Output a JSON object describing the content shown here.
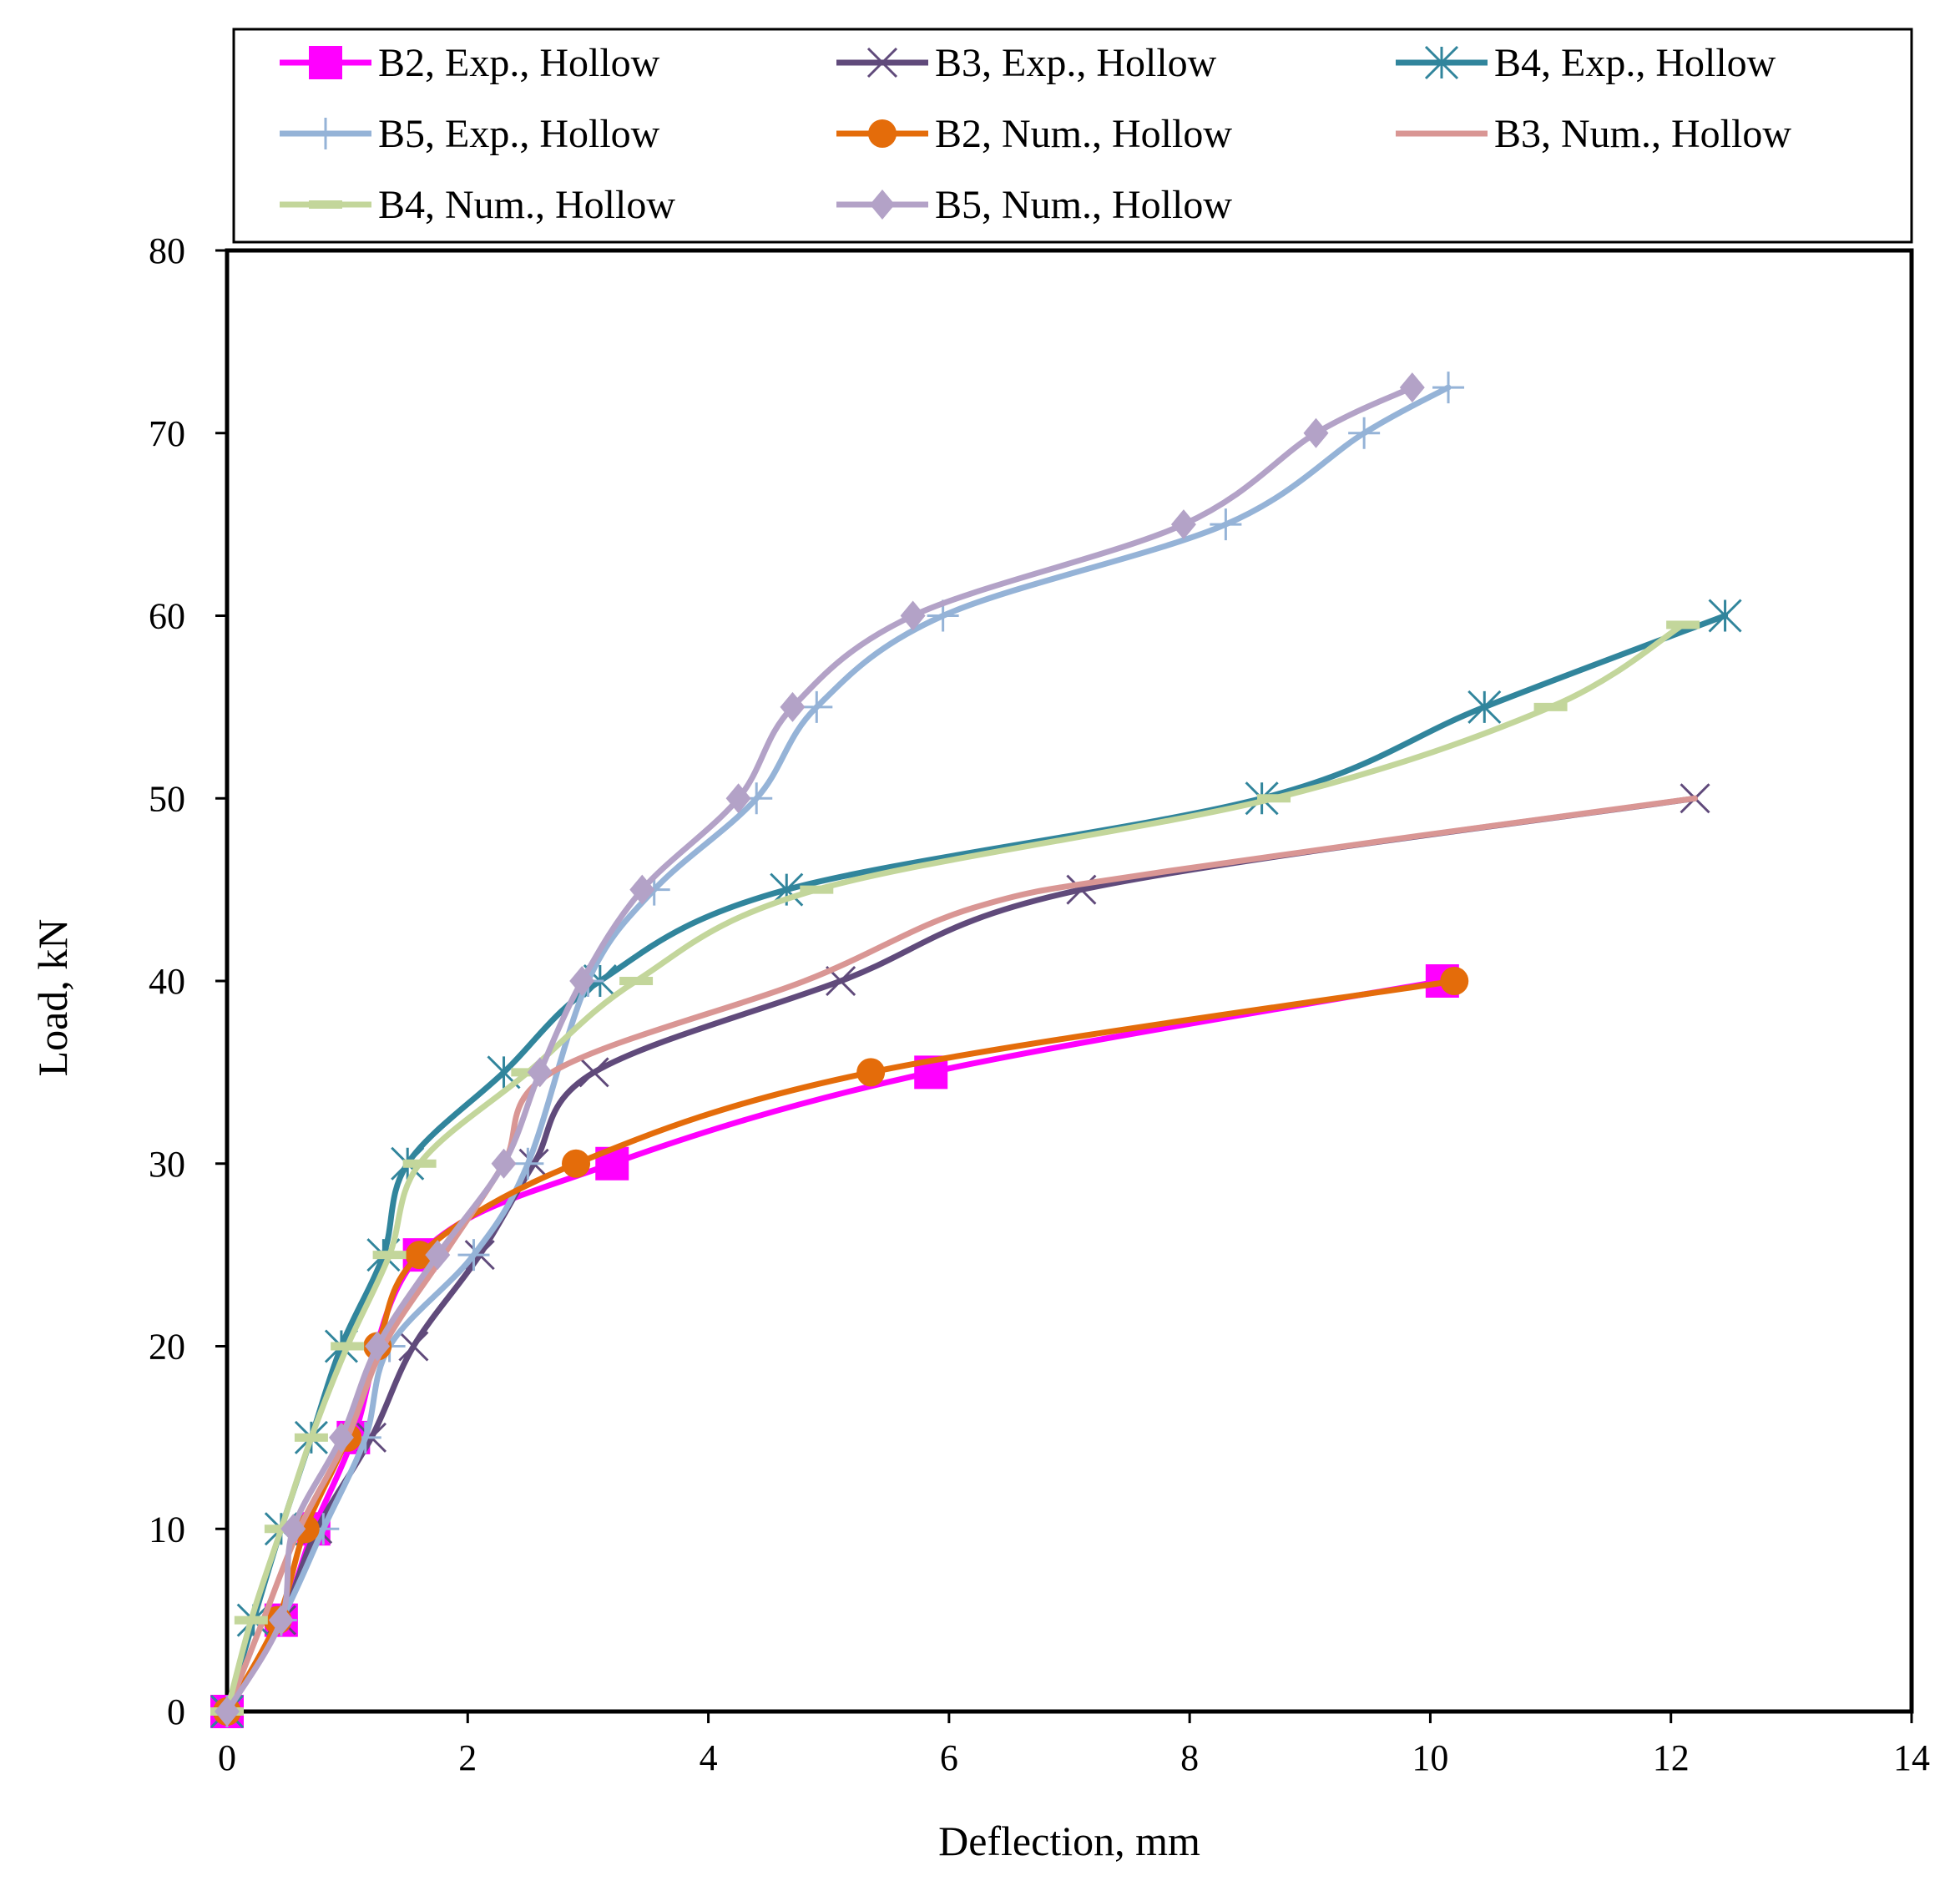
{
  "chart_data": {
    "type": "line",
    "title": "",
    "xlabel": "Deflection, mm",
    "ylabel": "Load, kN",
    "xlim": [
      0,
      14
    ],
    "ylim": [
      0,
      80
    ],
    "x_ticks": [
      0,
      2,
      4,
      6,
      8,
      10,
      12,
      14
    ],
    "y_ticks": [
      0,
      10,
      20,
      30,
      40,
      50,
      60,
      70,
      80
    ],
    "grid": false,
    "legend_position": "top",
    "series": [
      {
        "name": "B2, Exp., Hollow",
        "color": "#ff00ff",
        "marker": "square",
        "x": [
          0,
          0.45,
          0.72,
          1.05,
          1.6,
          3.2,
          5.85,
          10.1
        ],
        "y": [
          0,
          5,
          10,
          15,
          25,
          30,
          35,
          40
        ]
      },
      {
        "name": "B3, Exp., Hollow",
        "color": "#604a7b",
        "marker": "x",
        "x": [
          0,
          0.45,
          0.75,
          1.2,
          1.55,
          2.1,
          2.55,
          3.05,
          5.1,
          7.1,
          12.2
        ],
        "y": [
          0,
          5,
          10,
          15,
          20,
          25,
          30,
          35,
          40,
          45,
          50
        ]
      },
      {
        "name": "B4, Exp., Hollow",
        "color": "#31859c",
        "marker": "asterisk",
        "x": [
          0,
          0.22,
          0.45,
          0.7,
          0.95,
          1.3,
          1.5,
          2.3,
          3.1,
          4.65,
          8.6,
          10.45,
          12.45
        ],
        "y": [
          0,
          5,
          10,
          15,
          20,
          25,
          30,
          35,
          40,
          45,
          50,
          55,
          60
        ]
      },
      {
        "name": "B5, Exp., Hollow",
        "color": "#95b3d7",
        "marker": "plus",
        "x": [
          0,
          0.45,
          0.8,
          1.15,
          1.35,
          2.05,
          2.5,
          3.0,
          3.55,
          4.4,
          4.9,
          5.95,
          8.3,
          9.45,
          10.15
        ],
        "y": [
          0,
          5,
          10,
          15,
          20,
          25,
          30,
          40,
          45,
          50,
          55,
          60,
          65,
          70,
          72.5
        ]
      },
      {
        "name": "B2, Num., Hollow",
        "color": "#e46c0a",
        "marker": "circle",
        "x": [
          0,
          0.42,
          0.65,
          1.0,
          1.25,
          1.6,
          2.9,
          5.35,
          10.2
        ],
        "y": [
          0,
          5,
          10,
          15,
          20,
          25,
          30,
          35,
          40
        ]
      },
      {
        "name": "B3, Num., Hollow",
        "color": "#d99694",
        "marker": "none",
        "x": [
          0,
          0.3,
          0.6,
          1.0,
          1.3,
          1.8,
          2.3,
          2.7,
          4.8,
          6.2,
          7.8,
          12.2
        ],
        "y": [
          0,
          5,
          10,
          15,
          20,
          25,
          30,
          35,
          40,
          44,
          46,
          50
        ]
      },
      {
        "name": "B4, Num., Hollow",
        "color": "#c3d69b",
        "marker": "dash",
        "x": [
          0,
          0.2,
          0.45,
          0.7,
          1.0,
          1.35,
          1.6,
          2.5,
          3.4,
          4.9,
          8.7,
          11.0,
          12.1
        ],
        "y": [
          0,
          5,
          10,
          15,
          20,
          25,
          30,
          35,
          40,
          45,
          50,
          55,
          59.5
        ]
      },
      {
        "name": "B5, Num., Hollow",
        "color": "#b3a2c7",
        "marker": "diamond",
        "x": [
          0,
          0.45,
          0.55,
          0.95,
          1.25,
          1.75,
          2.3,
          2.6,
          2.95,
          3.45,
          4.25,
          4.7,
          5.7,
          7.95,
          9.05,
          9.85
        ],
        "y": [
          0,
          5,
          10,
          15,
          20,
          25,
          30,
          35,
          40,
          45,
          50,
          55,
          60,
          65,
          70,
          72.5
        ]
      }
    ]
  }
}
